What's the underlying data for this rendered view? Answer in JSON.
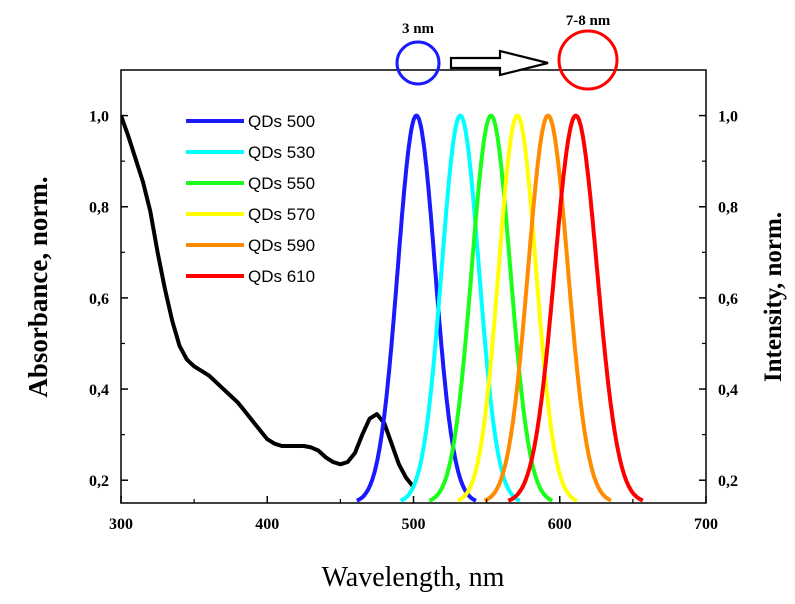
{
  "chart_data": {
    "type": "line",
    "xlabel": "Wavelength, nm",
    "ylabel_left": "Absorbance, norm.",
    "ylabel_right": "Intensity, norm.",
    "xlim": [
      300,
      700
    ],
    "ylim": [
      0.15,
      1.1
    ],
    "x_ticks": [
      300,
      400,
      500,
      600,
      700
    ],
    "x_tick_labels": [
      "300",
      "400",
      "500",
      "600",
      "700"
    ],
    "y_ticks": [
      0.2,
      0.4,
      0.6,
      0.8,
      1.0
    ],
    "y_tick_labels": [
      "0,2",
      "0,4",
      "0,6",
      "0,8",
      "1,0"
    ],
    "absorbance": {
      "name": "Absorbance",
      "color": "#000000",
      "x": [
        300,
        305,
        310,
        315,
        320,
        325,
        330,
        335,
        340,
        345,
        350,
        355,
        360,
        365,
        370,
        375,
        380,
        385,
        390,
        395,
        400,
        405,
        410,
        415,
        420,
        425,
        430,
        435,
        440,
        445,
        450,
        455,
        460,
        465,
        470,
        475,
        480,
        485,
        490,
        495,
        500
      ],
      "y": [
        1.0,
        0.955,
        0.905,
        0.855,
        0.79,
        0.7,
        0.62,
        0.55,
        0.495,
        0.465,
        0.45,
        0.44,
        0.43,
        0.415,
        0.4,
        0.385,
        0.37,
        0.35,
        0.33,
        0.31,
        0.29,
        0.28,
        0.275,
        0.275,
        0.275,
        0.275,
        0.272,
        0.265,
        0.25,
        0.24,
        0.235,
        0.24,
        0.26,
        0.3,
        0.335,
        0.345,
        0.325,
        0.28,
        0.235,
        0.205,
        0.185
      ]
    },
    "series": [
      {
        "name": "QDs 500",
        "label": "QDs 500",
        "color": "#1a1aff",
        "peak": 502,
        "fwhm": 30
      },
      {
        "name": "QDs 530",
        "label": "QDs 530",
        "color": "#00ffff",
        "peak": 532,
        "fwhm": 30
      },
      {
        "name": "QDs 550",
        "label": "QDs 550",
        "color": "#1aff1a",
        "peak": 553,
        "fwhm": 31
      },
      {
        "name": "QDs 570",
        "label": "QDs 570",
        "color": "#ffff00",
        "peak": 571,
        "fwhm": 30
      },
      {
        "name": "QDs 590",
        "label": "QDs 590",
        "color": "#ff8c00",
        "peak": 592,
        "fwhm": 32
      },
      {
        "name": "QDs 610",
        "label": "QDs 610",
        "color": "#ff0000",
        "peak": 611,
        "fwhm": 34
      }
    ],
    "legend_position": "top-left",
    "annotations": {
      "small_size": "3 nm",
      "large_size": "7-8 nm",
      "small_color": "#1a1aff",
      "large_color": "#ff0000"
    }
  }
}
